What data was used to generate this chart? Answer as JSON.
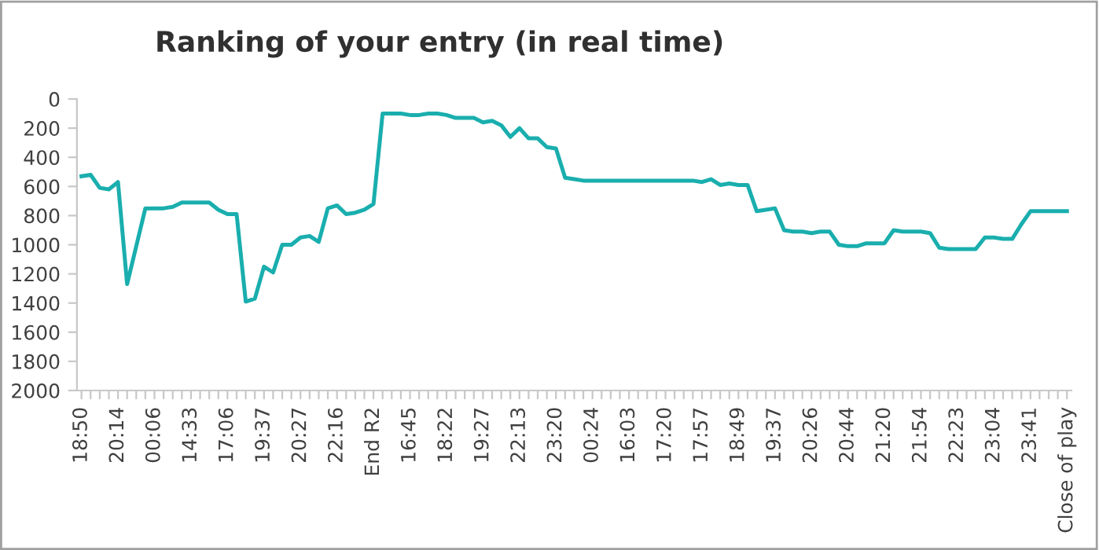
{
  "chart_data": {
    "type": "line",
    "title": "Ranking of your entry (in real time)",
    "categories": [
      "18:50",
      null,
      null,
      null,
      "20:14",
      null,
      null,
      null,
      "00:06",
      null,
      null,
      null,
      "14:33",
      null,
      null,
      null,
      "17:06",
      null,
      null,
      null,
      "19:37",
      null,
      null,
      null,
      "20:27",
      null,
      null,
      null,
      "22:16",
      null,
      null,
      null,
      "End R2",
      null,
      null,
      null,
      "16:45",
      null,
      null,
      null,
      "18:22",
      null,
      null,
      null,
      "19:27",
      null,
      null,
      null,
      "22:13",
      null,
      null,
      null,
      "23:20",
      null,
      null,
      null,
      "00:24",
      null,
      null,
      null,
      "16:03",
      null,
      null,
      null,
      "17:20",
      null,
      null,
      null,
      "17:57",
      null,
      null,
      null,
      "18:49",
      null,
      null,
      null,
      "19:37",
      null,
      null,
      null,
      "20:26",
      null,
      null,
      null,
      "20:44",
      null,
      null,
      null,
      "21:20",
      null,
      null,
      null,
      "21:54",
      null,
      null,
      null,
      "22:23",
      null,
      null,
      null,
      "23:04",
      null,
      null,
      null,
      "23:41",
      null,
      null,
      null,
      "Close of play"
    ],
    "series": [
      {
        "color": "#1aaeae",
        "values": [
          530,
          520,
          610,
          620,
          570,
          1270,
          1010,
          750,
          750,
          750,
          740,
          710,
          710,
          710,
          710,
          760,
          790,
          790,
          1390,
          1370,
          1150,
          1190,
          1000,
          1000,
          950,
          940,
          980,
          750,
          730,
          790,
          780,
          760,
          720,
          100,
          100,
          100,
          110,
          110,
          100,
          100,
          110,
          130,
          130,
          130,
          160,
          150,
          180,
          260,
          200,
          270,
          270,
          330,
          340,
          540,
          550,
          560,
          560,
          560,
          560,
          560,
          560,
          560,
          560,
          560,
          560,
          560,
          560,
          560,
          570,
          550,
          590,
          580,
          590,
          590,
          770,
          760,
          750,
          900,
          910,
          910,
          920,
          910,
          910,
          1000,
          1010,
          1010,
          990,
          990,
          990,
          900,
          910,
          910,
          910,
          920,
          1020,
          1030,
          1030,
          1030,
          1030,
          950,
          950,
          960,
          960,
          860,
          770,
          770,
          770,
          770,
          770
        ]
      }
    ],
    "ylim": [
      2000,
      0
    ],
    "yticks": [
      0,
      200,
      400,
      600,
      800,
      1000,
      1200,
      1400,
      1600,
      1800,
      2000
    ],
    "grid": false,
    "marker": "none",
    "line_style": "solid"
  }
}
